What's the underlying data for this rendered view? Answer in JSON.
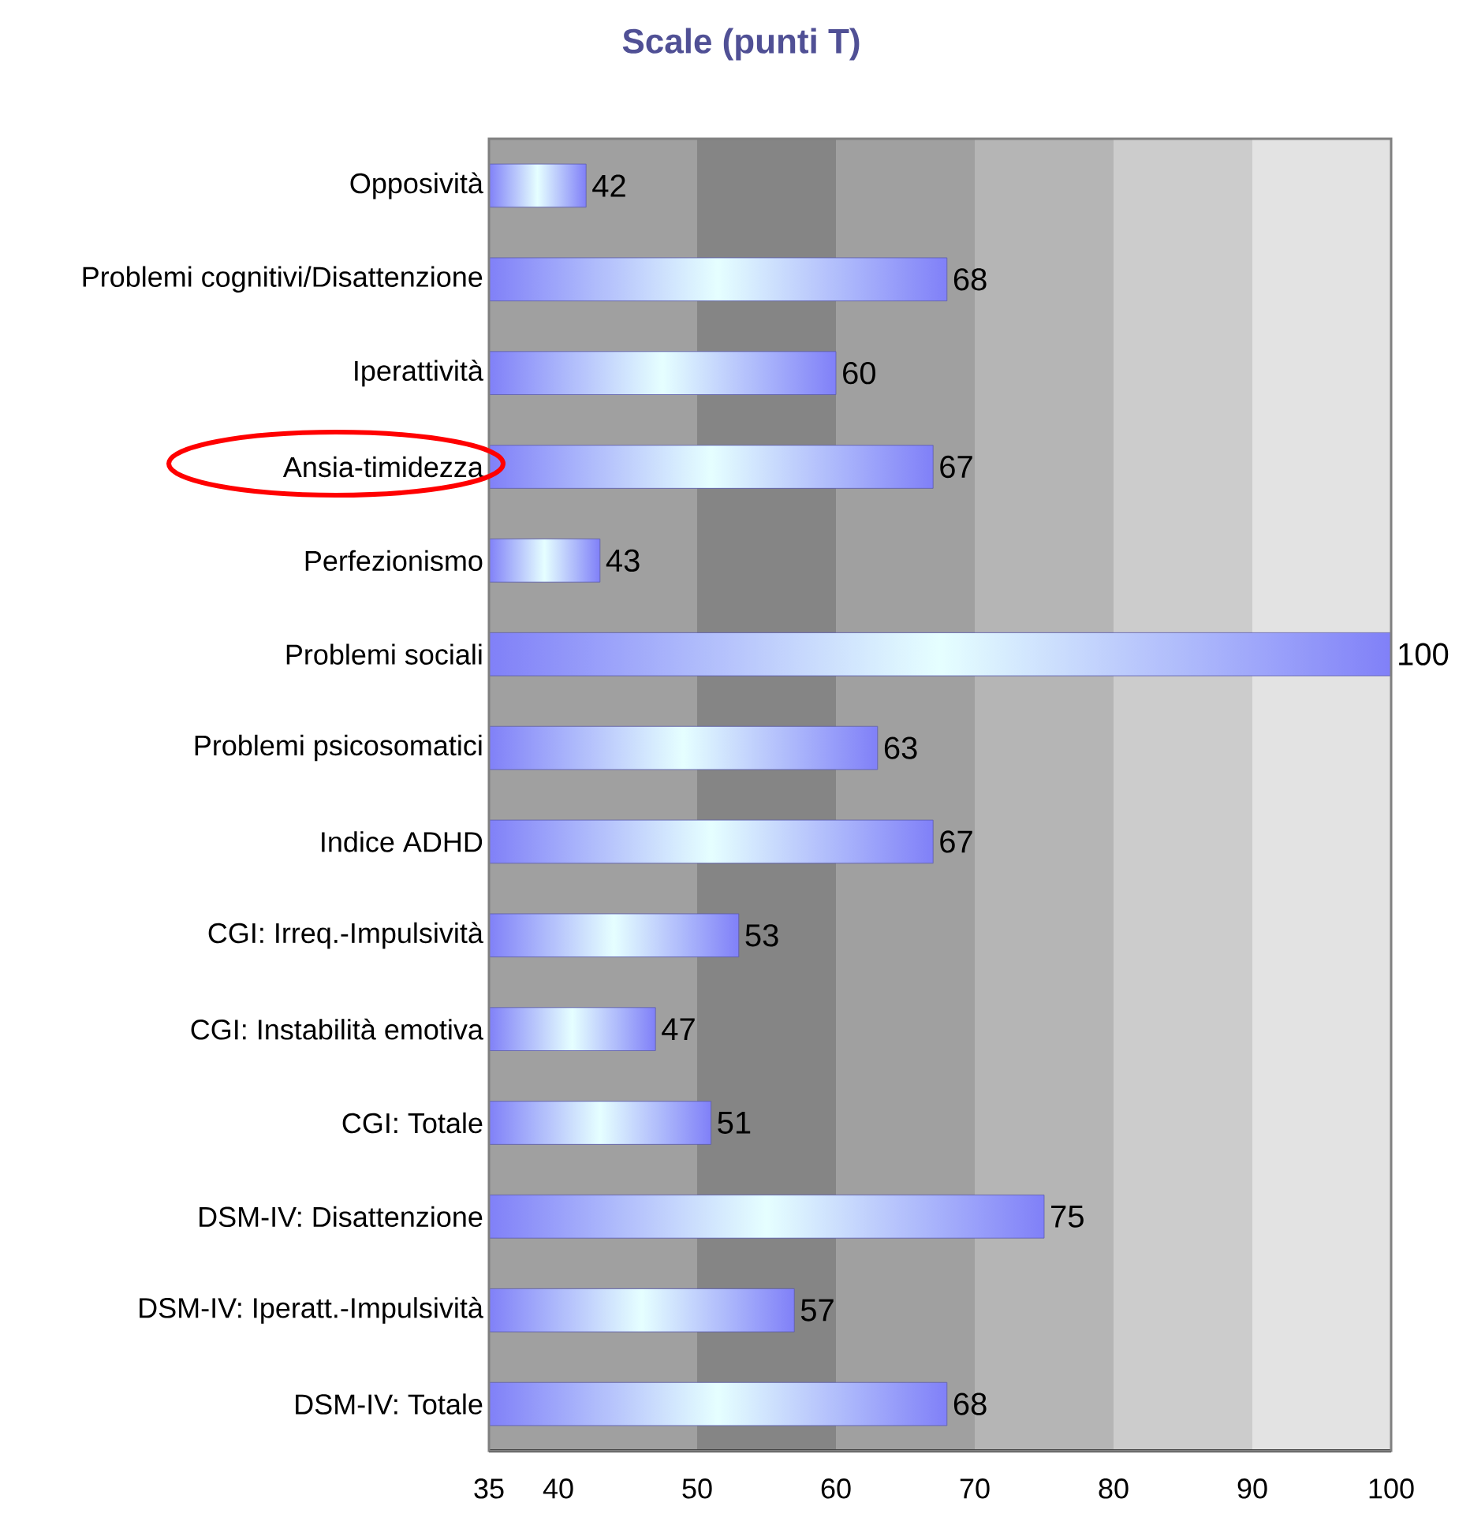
{
  "chart_data": {
    "type": "bar",
    "orientation": "horizontal",
    "title": "Scale (punti T)",
    "categories": [
      "Opposività",
      "Problemi cognitivi/Disattenzione",
      "Iperattività",
      "Ansia-timidezza",
      "Perfezionismo",
      "Problemi sociali",
      "Problemi psicosomatici",
      "Indice ADHD",
      "CGI: Irreq.-Impulsività",
      "CGI: Instabilità emotiva",
      "CGI: Totale",
      "DSM-IV: Disattenzione",
      "DSM-IV: Iperatt.-Impulsività",
      "DSM-IV: Totale"
    ],
    "values": [
      42,
      68,
      60,
      67,
      43,
      100,
      63,
      67,
      53,
      47,
      51,
      75,
      57,
      68
    ],
    "color": "#8080f8",
    "data_labels": true,
    "grid": false,
    "xlim": [
      35,
      100
    ],
    "xticks": [
      35,
      40,
      50,
      60,
      70,
      80,
      90,
      100
    ],
    "bands": [
      {
        "axis": "x",
        "from": 35,
        "to": 50,
        "color": "#a0a0a0"
      },
      {
        "axis": "x",
        "from": 50,
        "to": 60,
        "color": "#858585"
      },
      {
        "axis": "x",
        "from": 60,
        "to": 70,
        "color": "#a0a0a0"
      },
      {
        "axis": "x",
        "from": 70,
        "to": 80,
        "color": "#b5b5b5"
      },
      {
        "axis": "x",
        "from": 80,
        "to": 90,
        "color": "#cccccc"
      },
      {
        "axis": "x",
        "from": 90,
        "to": 100,
        "color": "#e3e3e3"
      }
    ]
  }
}
